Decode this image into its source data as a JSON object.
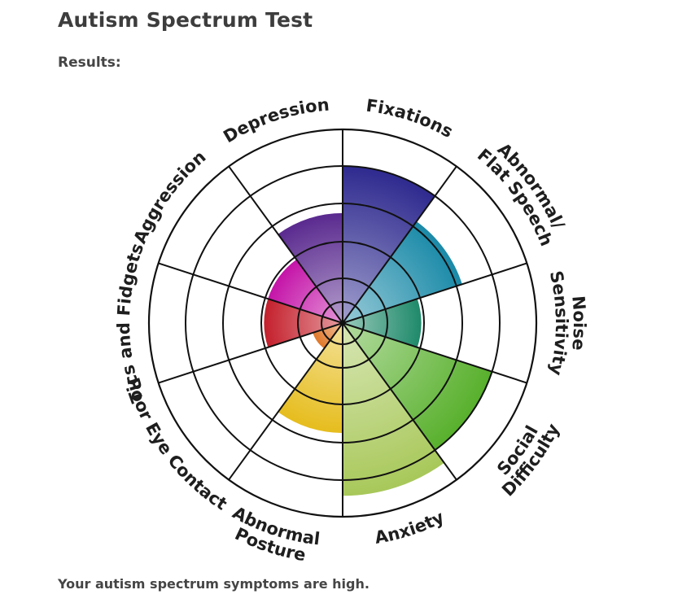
{
  "page": {
    "title": "Autism Spectrum Test",
    "results_label": "Results:",
    "summary": "Your autism spectrum symptoms are high."
  },
  "chart_data": {
    "type": "polar-area",
    "scale_max": 5,
    "categories": [
      {
        "name": "Fixations",
        "value": 5,
        "color": "#2e2a8f"
      },
      {
        "name": "Abnormal/ Flat Speech",
        "value": 4,
        "color": "#1a8aa8"
      },
      {
        "name": "Noise Sensitivity",
        "value": 2.5,
        "color": "#1f8a6a"
      },
      {
        "name": "Social Difficulty",
        "value": 5,
        "color": "#58b02c"
      },
      {
        "name": "Anxiety",
        "value": 5.5,
        "color": "#a8c85a"
      },
      {
        "name": "Abnormal Posture",
        "value": 3.5,
        "color": "#e6bd1e"
      },
      {
        "name": "Poor Eye Contact",
        "value": 1,
        "color": "#e0782a"
      },
      {
        "name": "Tics and Fidgets",
        "value": 2.5,
        "color": "#c4202c"
      },
      {
        "name": "Aggression",
        "value": 2.5,
        "color": "#c414a8"
      },
      {
        "name": "Depression",
        "value": 3.5,
        "color": "#5a2a8f"
      }
    ]
  }
}
